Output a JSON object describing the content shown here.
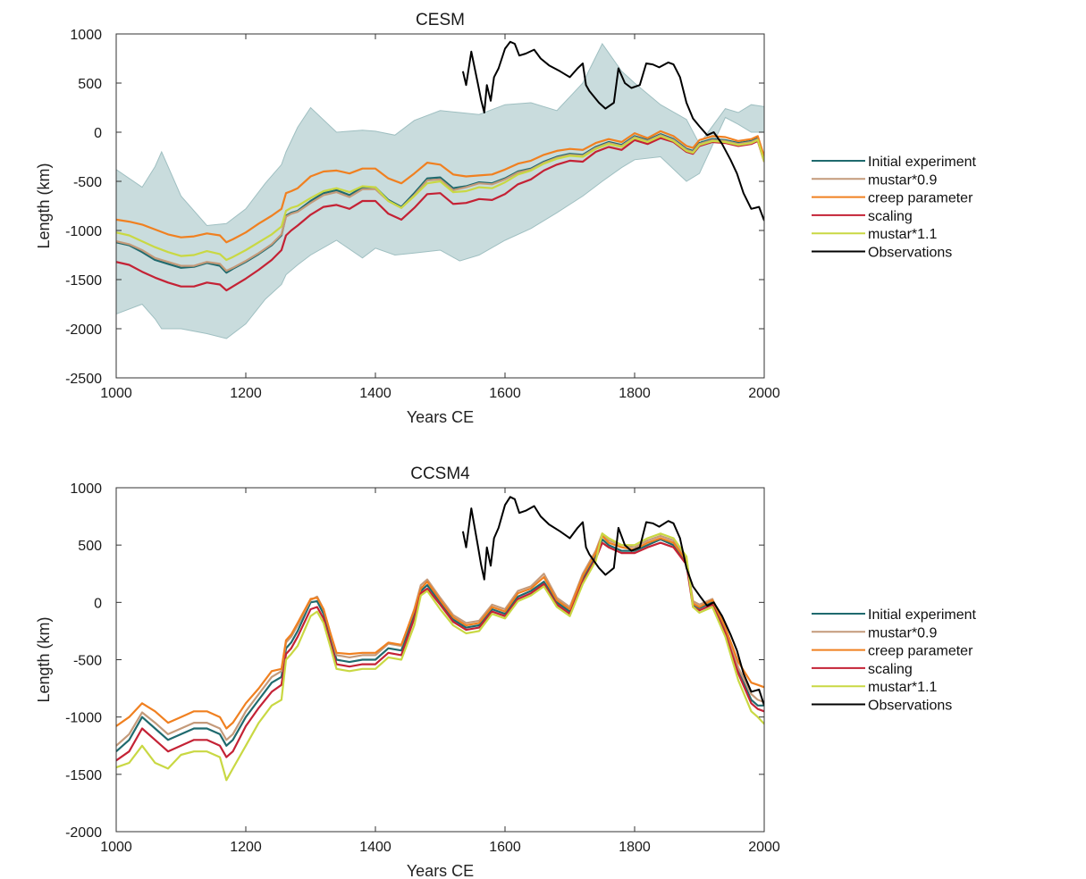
{
  "chart_data": [
    {
      "type": "line",
      "title": "CESM",
      "xlabel": "Years CE",
      "ylabel": "Length  (km)",
      "xlim": [
        1000,
        2000
      ],
      "ylim": [
        -2500,
        1000
      ],
      "xticks": [
        1000,
        1200,
        1400,
        1600,
        1800,
        2000
      ],
      "yticks": [
        -2500,
        -2000,
        -1500,
        -1000,
        -500,
        0,
        500,
        1000
      ],
      "xtick_labels": [
        "1000",
        "1200",
        "1400",
        "1600",
        "1800",
        "2000"
      ],
      "ytick_labels": [
        "-2500",
        "-2000",
        "-1500",
        "-1000",
        "-500",
        "0",
        "500",
        "1000"
      ],
      "legend_position": "right",
      "envelope": {
        "color": "#c9dcdd",
        "x": [
          1000,
          1040,
          1060,
          1070,
          1100,
          1140,
          1170,
          1200,
          1230,
          1255,
          1262,
          1280,
          1300,
          1340,
          1380,
          1400,
          1430,
          1460,
          1500,
          1530,
          1560,
          1600,
          1640,
          1680,
          1720,
          1750,
          1780,
          1800,
          1840,
          1880,
          1900,
          1940,
          1960,
          1980,
          2000
        ],
        "upper": [
          -380,
          -560,
          -350,
          -200,
          -650,
          -950,
          -930,
          -780,
          -520,
          -330,
          -200,
          50,
          250,
          0,
          20,
          10,
          -30,
          120,
          220,
          200,
          180,
          280,
          300,
          220,
          500,
          900,
          620,
          500,
          280,
          130,
          -120,
          240,
          200,
          280,
          260
        ],
        "lower": [
          -1850,
          -1750,
          -1900,
          -2000,
          -2000,
          -2050,
          -2100,
          -1950,
          -1700,
          -1550,
          -1450,
          -1350,
          -1250,
          -1100,
          -1280,
          -1180,
          -1250,
          -1230,
          -1200,
          -1310,
          -1250,
          -1100,
          -980,
          -820,
          -650,
          -500,
          -360,
          -280,
          -250,
          -500,
          -420,
          150,
          80,
          0,
          0
        ]
      },
      "x": [
        1000,
        1020,
        1040,
        1060,
        1080,
        1100,
        1120,
        1140,
        1160,
        1170,
        1180,
        1200,
        1220,
        1240,
        1255,
        1262,
        1270,
        1280,
        1300,
        1320,
        1340,
        1360,
        1380,
        1400,
        1420,
        1440,
        1460,
        1480,
        1500,
        1520,
        1540,
        1560,
        1580,
        1600,
        1620,
        1640,
        1660,
        1680,
        1700,
        1720,
        1740,
        1760,
        1780,
        1800,
        1820,
        1840,
        1860,
        1880,
        1890,
        1900,
        1920,
        1940,
        1960,
        1980,
        1990,
        2000
      ],
      "series": [
        {
          "name": "Initial experiment",
          "color": "#1f6a6e",
          "values": [
            -1120,
            -1150,
            -1220,
            -1300,
            -1340,
            -1380,
            -1370,
            -1330,
            -1360,
            -1430,
            -1390,
            -1320,
            -1240,
            -1150,
            -1050,
            -850,
            -820,
            -800,
            -700,
            -620,
            -590,
            -640,
            -560,
            -560,
            -690,
            -760,
            -620,
            -470,
            -460,
            -570,
            -550,
            -510,
            -520,
            -470,
            -400,
            -370,
            -300,
            -250,
            -220,
            -230,
            -150,
            -100,
            -130,
            -40,
            -80,
            -20,
            -70,
            -170,
            -190,
            -110,
            -70,
            -80,
            -110,
            -90,
            -60,
            -270
          ]
        },
        {
          "name": "mustar*0.9",
          "color": "#c49a7a",
          "values": [
            -1110,
            -1140,
            -1200,
            -1280,
            -1320,
            -1360,
            -1360,
            -1320,
            -1340,
            -1410,
            -1380,
            -1310,
            -1230,
            -1140,
            -1040,
            -860,
            -830,
            -810,
            -720,
            -640,
            -610,
            -660,
            -580,
            -580,
            -700,
            -770,
            -640,
            -490,
            -480,
            -590,
            -560,
            -520,
            -530,
            -480,
            -410,
            -380,
            -310,
            -260,
            -230,
            -240,
            -160,
            -110,
            -140,
            -50,
            -90,
            -30,
            -80,
            -180,
            -200,
            -120,
            -80,
            -90,
            -120,
            -100,
            -70,
            -280
          ]
        },
        {
          "name": "creep parameter",
          "color": "#f08020",
          "values": [
            -890,
            -910,
            -940,
            -990,
            -1040,
            -1070,
            -1060,
            -1030,
            -1050,
            -1120,
            -1090,
            -1020,
            -930,
            -850,
            -780,
            -620,
            -600,
            -570,
            -450,
            -400,
            -390,
            -420,
            -370,
            -370,
            -470,
            -520,
            -420,
            -310,
            -330,
            -430,
            -450,
            -440,
            -430,
            -380,
            -320,
            -290,
            -230,
            -190,
            -170,
            -180,
            -110,
            -70,
            -100,
            -10,
            -60,
            10,
            -40,
            -140,
            -160,
            -80,
            -40,
            -50,
            -90,
            -70,
            -40,
            -250
          ]
        },
        {
          "name": "scaling",
          "color": "#c42235",
          "values": [
            -1320,
            -1350,
            -1420,
            -1480,
            -1530,
            -1570,
            -1570,
            -1530,
            -1550,
            -1610,
            -1570,
            -1490,
            -1400,
            -1300,
            -1200,
            -1050,
            -1000,
            -950,
            -840,
            -760,
            -740,
            -780,
            -700,
            -700,
            -830,
            -890,
            -770,
            -630,
            -620,
            -730,
            -720,
            -680,
            -690,
            -630,
            -530,
            -480,
            -390,
            -330,
            -290,
            -300,
            -200,
            -150,
            -180,
            -80,
            -120,
            -60,
            -100,
            -200,
            -220,
            -140,
            -100,
            -110,
            -140,
            -120,
            -90,
            -300
          ]
        },
        {
          "name": "mustar*1.1",
          "color": "#c9d843",
          "values": [
            -1020,
            -1050,
            -1110,
            -1170,
            -1220,
            -1260,
            -1250,
            -1210,
            -1240,
            -1300,
            -1270,
            -1200,
            -1120,
            -1040,
            -960,
            -800,
            -770,
            -750,
            -670,
            -600,
            -570,
            -610,
            -550,
            -560,
            -700,
            -770,
            -650,
            -520,
            -500,
            -610,
            -600,
            -560,
            -570,
            -510,
            -430,
            -390,
            -320,
            -270,
            -240,
            -250,
            -170,
            -120,
            -150,
            -60,
            -100,
            -40,
            -90,
            -190,
            -210,
            -130,
            -90,
            -100,
            -130,
            -110,
            -80,
            -300
          ]
        }
      ],
      "observations": {
        "name": "Observations",
        "color": "#000000",
        "x": [
          1535,
          1540,
          1548,
          1558,
          1563,
          1568,
          1572,
          1578,
          1583,
          1590,
          1600,
          1608,
          1615,
          1622,
          1632,
          1645,
          1655,
          1668,
          1685,
          1700,
          1712,
          1720,
          1725,
          1730,
          1745,
          1755,
          1768,
          1775,
          1785,
          1795,
          1808,
          1818,
          1828,
          1838,
          1852,
          1860,
          1870,
          1880,
          1890,
          1900,
          1912,
          1922,
          1935,
          1948,
          1958,
          1968,
          1980,
          1992,
          2000
        ],
        "y": [
          620,
          480,
          820,
          500,
          330,
          200,
          480,
          320,
          560,
          650,
          850,
          920,
          900,
          780,
          800,
          840,
          750,
          680,
          620,
          560,
          650,
          700,
          480,
          420,
          300,
          240,
          300,
          650,
          500,
          450,
          480,
          700,
          690,
          660,
          710,
          690,
          560,
          300,
          140,
          60,
          -30,
          0,
          -120,
          -280,
          -420,
          -620,
          -780,
          -760,
          -900
        ]
      }
    },
    {
      "type": "line",
      "title": "CCSM4",
      "xlabel": "Years CE",
      "ylabel": "Length (km)",
      "xlim": [
        1000,
        2000
      ],
      "ylim": [
        -2000,
        1000
      ],
      "xticks": [
        1000,
        1200,
        1400,
        1600,
        1800,
        2000
      ],
      "yticks": [
        -2000,
        -1500,
        -1000,
        -500,
        0,
        500,
        1000
      ],
      "xtick_labels": [
        "1000",
        "1200",
        "1400",
        "1600",
        "1800",
        "2000"
      ],
      "ytick_labels": [
        "-2000",
        "-1500",
        "-1000",
        "-500",
        "0",
        "500",
        "1000"
      ],
      "legend_position": "right",
      "x": [
        1000,
        1020,
        1040,
        1060,
        1080,
        1100,
        1120,
        1140,
        1160,
        1170,
        1180,
        1200,
        1220,
        1240,
        1255,
        1262,
        1270,
        1280,
        1300,
        1310,
        1320,
        1330,
        1340,
        1360,
        1380,
        1400,
        1420,
        1440,
        1460,
        1470,
        1480,
        1500,
        1520,
        1540,
        1560,
        1580,
        1600,
        1620,
        1640,
        1660,
        1680,
        1700,
        1720,
        1740,
        1750,
        1760,
        1780,
        1800,
        1820,
        1840,
        1860,
        1880,
        1890,
        1900,
        1920,
        1940,
        1960,
        1980,
        1990,
        2000
      ],
      "series": [
        {
          "name": "Initial experiment",
          "color": "#1f6a6e",
          "values": [
            -1300,
            -1200,
            -1000,
            -1100,
            -1200,
            -1150,
            -1100,
            -1100,
            -1150,
            -1250,
            -1200,
            -1000,
            -850,
            -700,
            -650,
            -400,
            -350,
            -250,
            0,
            10,
            -100,
            -300,
            -500,
            -520,
            -500,
            -500,
            -400,
            -420,
            -100,
            100,
            150,
            0,
            -150,
            -220,
            -200,
            -60,
            -100,
            50,
            100,
            180,
            0,
            -80,
            200,
            400,
            550,
            500,
            450,
            450,
            500,
            550,
            500,
            350,
            -20,
            -50,
            0,
            -250,
            -600,
            -850,
            -900,
            -900
          ]
        },
        {
          "name": "mustar*0.9",
          "color": "#c49a7a",
          "values": [
            -1250,
            -1150,
            -960,
            -1050,
            -1150,
            -1100,
            -1050,
            -1050,
            -1100,
            -1200,
            -1150,
            -950,
            -800,
            -650,
            -600,
            -350,
            -300,
            -200,
            20,
            50,
            -60,
            -260,
            -460,
            -480,
            -460,
            -460,
            -360,
            -380,
            -60,
            150,
            200,
            40,
            -110,
            -180,
            -160,
            -20,
            -60,
            100,
            140,
            250,
            40,
            -40,
            250,
            450,
            600,
            540,
            500,
            480,
            540,
            580,
            540,
            380,
            10,
            -20,
            30,
            -220,
            -570,
            -800,
            -850,
            -870
          ]
        },
        {
          "name": "creep parameter",
          "color": "#f08020",
          "values": [
            -1080,
            -1000,
            -880,
            -950,
            -1050,
            -1000,
            -950,
            -950,
            -1000,
            -1100,
            -1050,
            -880,
            -750,
            -600,
            -580,
            -330,
            -280,
            -180,
            30,
            40,
            -60,
            -260,
            -440,
            -450,
            -440,
            -440,
            -350,
            -370,
            -70,
            120,
            180,
            20,
            -130,
            -200,
            -180,
            -40,
            -80,
            80,
            120,
            220,
            20,
            -60,
            230,
            430,
            580,
            520,
            480,
            460,
            520,
            560,
            520,
            360,
            -10,
            -40,
            20,
            -220,
            -520,
            -700,
            -720,
            -740
          ]
        },
        {
          "name": "scaling",
          "color": "#c42235",
          "values": [
            -1380,
            -1300,
            -1100,
            -1200,
            -1300,
            -1250,
            -1200,
            -1200,
            -1250,
            -1350,
            -1300,
            -1080,
            -920,
            -780,
            -720,
            -450,
            -400,
            -300,
            -60,
            -40,
            -140,
            -340,
            -540,
            -560,
            -540,
            -540,
            -440,
            -460,
            -140,
            80,
            120,
            -20,
            -170,
            -240,
            -220,
            -80,
            -120,
            30,
            80,
            160,
            -20,
            -100,
            180,
            380,
            520,
            480,
            430,
            430,
            480,
            520,
            480,
            330,
            -40,
            -70,
            -20,
            -270,
            -620,
            -880,
            -930,
            -950
          ]
        },
        {
          "name": "mustar*1.1",
          "color": "#c9d843",
          "values": [
            -1440,
            -1400,
            -1250,
            -1400,
            -1450,
            -1330,
            -1300,
            -1300,
            -1350,
            -1550,
            -1450,
            -1250,
            -1050,
            -900,
            -850,
            -500,
            -450,
            -380,
            -120,
            -80,
            -180,
            -380,
            -580,
            -600,
            -580,
            -580,
            -480,
            -500,
            -200,
            60,
            100,
            -60,
            -200,
            -270,
            -250,
            -100,
            -140,
            10,
            60,
            140,
            -40,
            -120,
            160,
            360,
            600,
            560,
            500,
            500,
            560,
            600,
            560,
            400,
            -40,
            -90,
            -40,
            -300,
            -680,
            -950,
            -1000,
            -1060
          ]
        }
      ],
      "observations": {
        "name": "Observations",
        "color": "#000000",
        "x": [
          1535,
          1540,
          1548,
          1558,
          1563,
          1568,
          1572,
          1578,
          1583,
          1590,
          1600,
          1608,
          1615,
          1622,
          1632,
          1645,
          1655,
          1668,
          1685,
          1700,
          1712,
          1720,
          1725,
          1730,
          1745,
          1755,
          1768,
          1775,
          1785,
          1795,
          1808,
          1818,
          1828,
          1838,
          1852,
          1860,
          1870,
          1880,
          1890,
          1900,
          1912,
          1922,
          1935,
          1948,
          1958,
          1968,
          1980,
          1992,
          2000
        ],
        "y": [
          620,
          480,
          820,
          500,
          330,
          200,
          480,
          320,
          560,
          650,
          850,
          920,
          900,
          780,
          800,
          840,
          750,
          680,
          620,
          560,
          650,
          700,
          480,
          420,
          300,
          240,
          300,
          650,
          500,
          450,
          480,
          700,
          690,
          660,
          710,
          690,
          560,
          300,
          140,
          60,
          -30,
          0,
          -120,
          -280,
          -420,
          -620,
          -780,
          -760,
          -900
        ]
      }
    }
  ]
}
